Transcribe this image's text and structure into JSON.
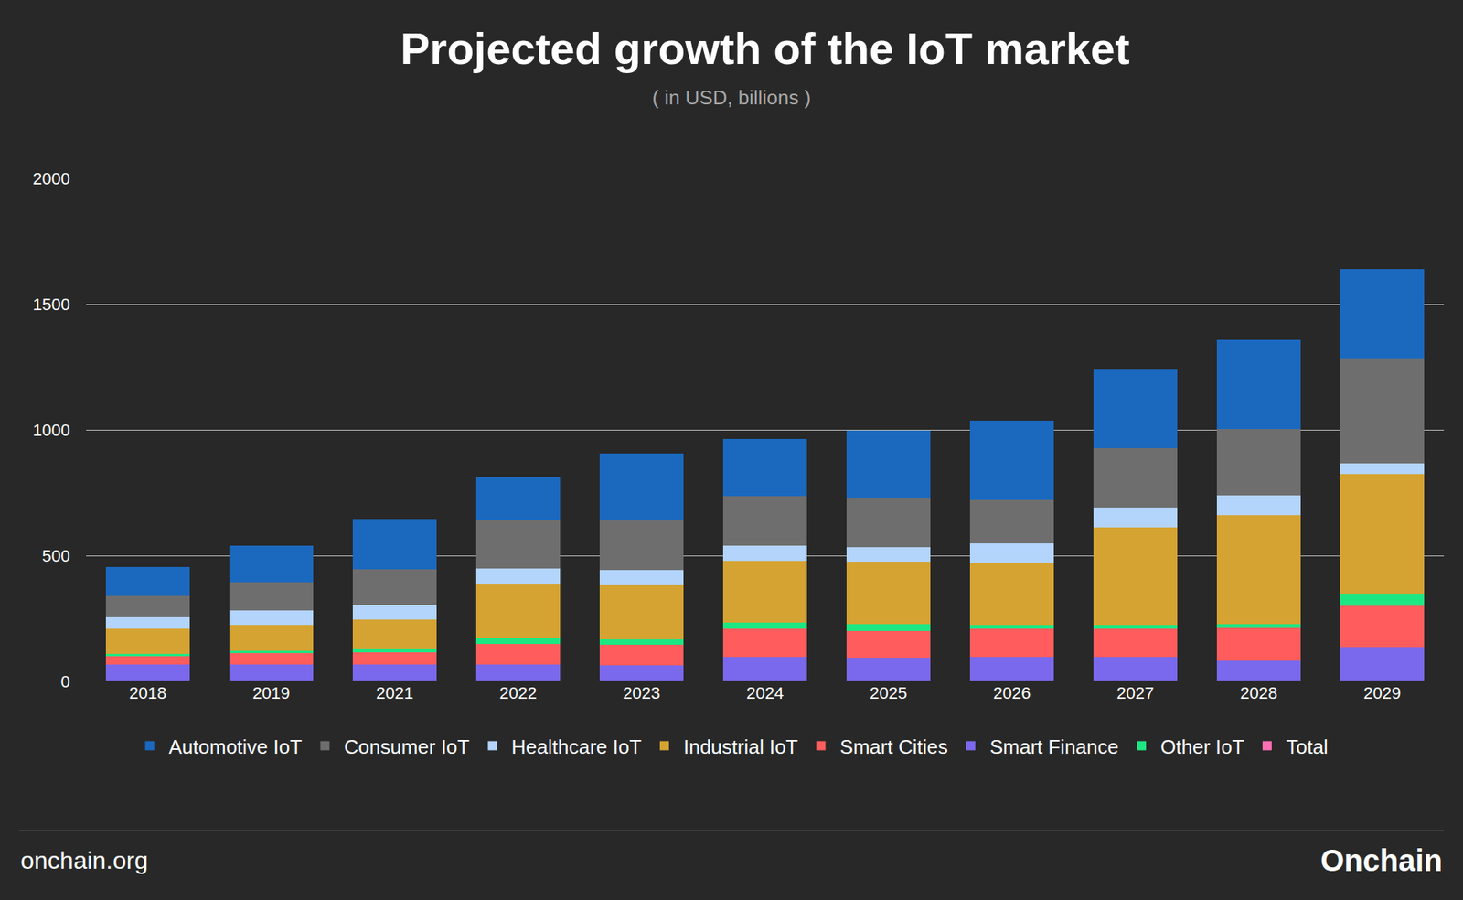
{
  "chart_data": {
    "type": "bar",
    "title": "Projected growth of the IoT market",
    "subtitle": "( in USD, billions )",
    "categories": [
      "2018",
      "2019",
      "2021",
      "2022",
      "2023",
      "2024",
      "2025",
      "2026",
      "2027",
      "2028",
      "2029"
    ],
    "stacked": true,
    "grid": true,
    "legend": "bottom",
    "ylim": [
      0,
      2000
    ],
    "yticks": [
      0,
      500,
      1000,
      1500,
      2000
    ],
    "series": [
      {
        "name": "Automotive IoT",
        "color": "#1a69bf",
        "values": [
          118,
          145,
          201,
          170,
          267,
          230,
          271,
          315,
          315,
          356,
          356
        ]
      },
      {
        "name": "Consumer IoT",
        "color": "#6e6e6e",
        "values": [
          82,
          111,
          141,
          193,
          197,
          197,
          193,
          171,
          238,
          264,
          416
        ]
      },
      {
        "name": "Healthcare IoT",
        "color": "#b3d4fb",
        "values": [
          48,
          59,
          59,
          63,
          59,
          59,
          59,
          78,
          78,
          78,
          44
        ]
      },
      {
        "name": "Industrial IoT",
        "color": "#d5a332",
        "values": [
          100,
          101,
          119,
          212,
          215,
          245,
          249,
          248,
          389,
          434,
          475
        ]
      },
      {
        "name": "Smart Cities",
        "color": "#ff5d5d",
        "values": [
          33,
          44,
          48,
          81,
          82,
          112,
          107,
          112,
          112,
          129,
          163
        ]
      },
      {
        "name": "Smart Finance",
        "color": "#7a69ec",
        "values": [
          67,
          67,
          67,
          67,
          63,
          96,
          93,
          96,
          96,
          82,
          137
        ]
      },
      {
        "name": "Other IoT",
        "color": "#1de782",
        "values": [
          8,
          11,
          11,
          26,
          22,
          26,
          26,
          15,
          15,
          15,
          49
        ]
      },
      {
        "name": "Total",
        "color": "#ff6eb4",
        "values": [
          null,
          null,
          null,
          null,
          null,
          null,
          null,
          null,
          null,
          null,
          null
        ]
      }
    ],
    "annotations": [
      "onchain.org",
      "Onchain"
    ]
  }
}
